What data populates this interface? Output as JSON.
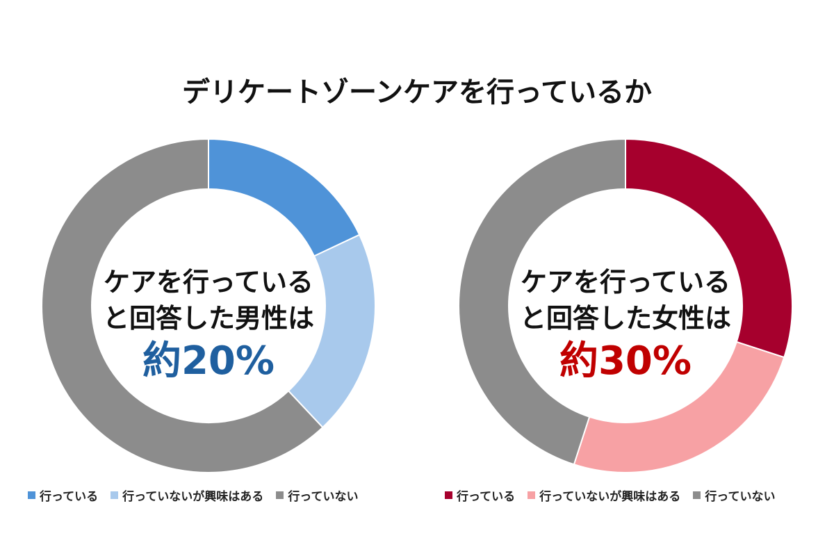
{
  "title": "デリケートゾーンケアを行っているか",
  "chart_data": [
    {
      "type": "pie",
      "name": "male",
      "categories": [
        "行っている",
        "行っていないが興味はある",
        "行っていない"
      ],
      "values": [
        18,
        20,
        62
      ],
      "colors": [
        "#4f93d8",
        "#a8c9ec",
        "#8c8c8c"
      ],
      "center_line1": "ケアを行っている",
      "center_line2": "と回答した男性は",
      "center_value": "約20%",
      "center_value_color": "#1f5f9f",
      "legend": [
        "行っている",
        "行っていないが興味はある",
        "行っていない"
      ]
    },
    {
      "type": "pie",
      "name": "female",
      "categories": [
        "行っている",
        "行っていないが興味はある",
        "行っていない"
      ],
      "values": [
        30,
        25,
        45
      ],
      "colors": [
        "#a6002d",
        "#f7a1a4",
        "#8c8c8c"
      ],
      "center_line1": "ケアを行っている",
      "center_line2": "と回答した女性は",
      "center_value": "約30%",
      "center_value_color": "#c00000",
      "legend": [
        "行っている",
        "行っていないが興味はある",
        "行っていない"
      ]
    }
  ]
}
